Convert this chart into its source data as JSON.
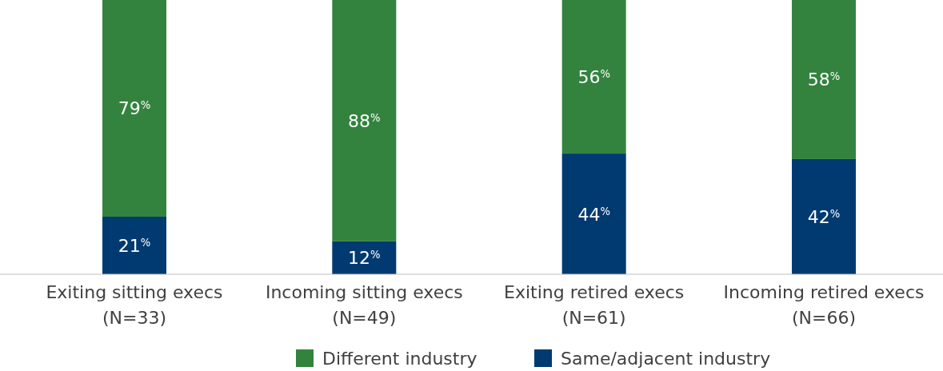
{
  "chart_data": {
    "type": "bar",
    "stacked": true,
    "categories": [
      "Exiting sitting execs\n(N=33)",
      "Incoming sitting execs\n(N=49)",
      "Exiting retired execs\n(N=61)",
      "Incoming retired execs\n(N=66)"
    ],
    "series": [
      {
        "name": "Same/adjacent industry",
        "color": "#003a70",
        "values": [
          21,
          12,
          44,
          42
        ],
        "value_labels": [
          "21$^{%}$",
          "12$^{%}$",
          "44$^{%}$",
          "42$^{%}$"
        ]
      },
      {
        "name": "Different industry",
        "color": "#33833f",
        "values": [
          79,
          88,
          56,
          58
        ],
        "value_labels": [
          "79$^{%}$",
          "88$^{%}$",
          "56$^{%}$",
          "58$^{%}$"
        ]
      }
    ],
    "ylim": [
      0,
      100
    ],
    "tick_labels": "x",
    "legend": "bottom"
  }
}
